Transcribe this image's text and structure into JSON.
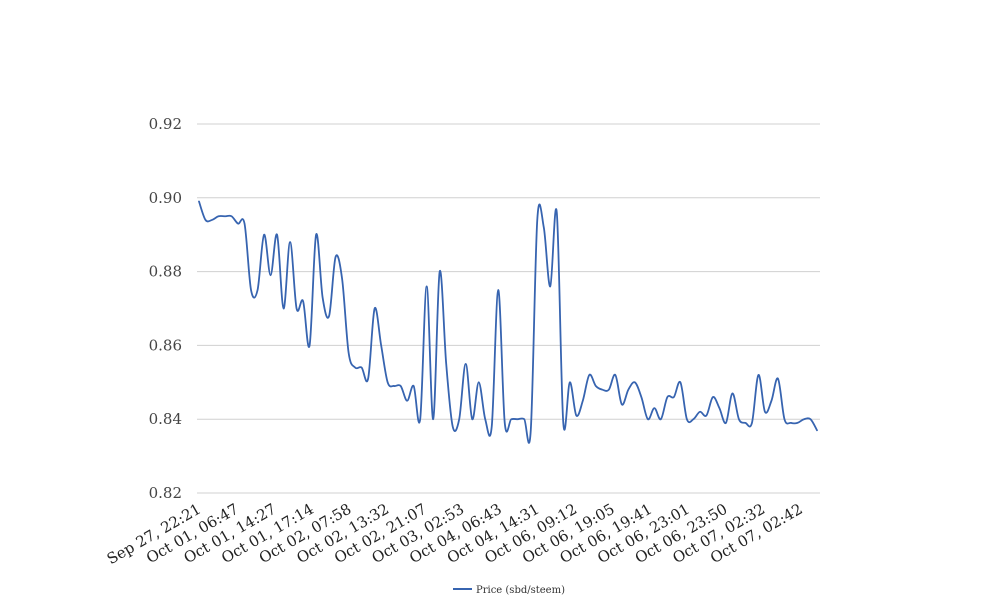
{
  "chart_data": {
    "type": "line",
    "title": "",
    "xlabel": "",
    "ylabel": "",
    "ylim": [
      0.82,
      0.92
    ],
    "yticks": [
      "0.82",
      "0.84",
      "0.86",
      "0.88",
      "0.90",
      "0.92"
    ],
    "xtick_labels": [
      "Sep 27, 22:21",
      "Oct 01, 06:47",
      "Oct 01, 14:27",
      "Oct 01, 17:14",
      "Oct 02, 07:58",
      "Oct 02, 13:32",
      "Oct 02, 21:07",
      "Oct 03, 02:53",
      "Oct 04, 06:43",
      "Oct 04, 14:31",
      "Oct 06, 09:12",
      "Oct 06, 19:05",
      "Oct 06, 19:41",
      "Oct 06, 23:01",
      "Oct 06, 23:50",
      "Oct 07, 02:32",
      "Oct 07, 02:42"
    ],
    "grid": true,
    "legend": "bottom",
    "series": [
      {
        "name": "Price (sbd/steem)",
        "color": "#3764b0",
        "values": [
          0.899,
          0.894,
          0.894,
          0.895,
          0.895,
          0.895,
          0.893,
          0.893,
          0.875,
          0.875,
          0.89,
          0.879,
          0.89,
          0.87,
          0.888,
          0.87,
          0.872,
          0.86,
          0.89,
          0.873,
          0.868,
          0.884,
          0.878,
          0.858,
          0.854,
          0.854,
          0.851,
          0.87,
          0.86,
          0.85,
          0.849,
          0.849,
          0.845,
          0.849,
          0.84,
          0.876,
          0.84,
          0.88,
          0.855,
          0.838,
          0.84,
          0.855,
          0.84,
          0.85,
          0.84,
          0.838,
          0.875,
          0.839,
          0.84,
          0.84,
          0.84,
          0.837,
          0.894,
          0.892,
          0.876,
          0.896,
          0.839,
          0.85,
          0.841,
          0.845,
          0.852,
          0.849,
          0.848,
          0.848,
          0.852,
          0.844,
          0.848,
          0.85,
          0.846,
          0.84,
          0.843,
          0.84,
          0.846,
          0.846,
          0.85,
          0.84,
          0.84,
          0.842,
          0.841,
          0.846,
          0.843,
          0.839,
          0.847,
          0.84,
          0.839,
          0.839,
          0.852,
          0.842,
          0.845,
          0.851,
          0.84,
          0.839,
          0.839,
          0.84,
          0.84,
          0.837
        ]
      }
    ]
  }
}
